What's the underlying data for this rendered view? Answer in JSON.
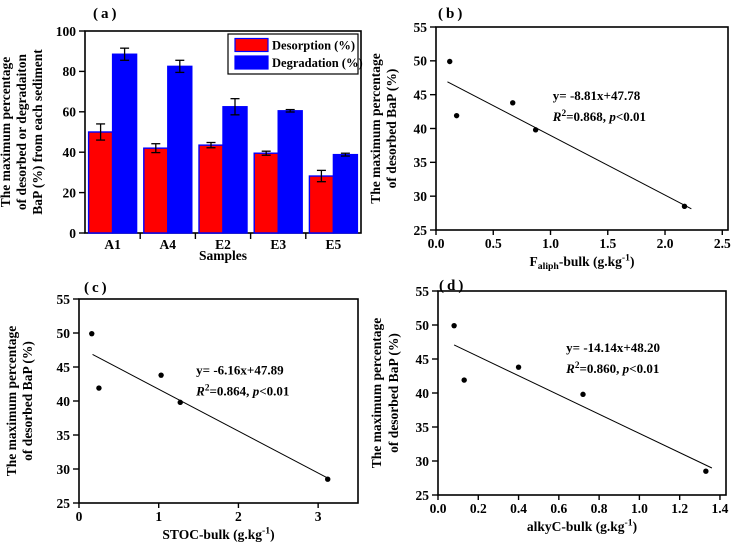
{
  "figure": {
    "background": "#ffffff",
    "text_color": "#000000",
    "accent_red": "#ff0000",
    "accent_blue": "#0000ff"
  },
  "chart_data": [
    {
      "id": "a",
      "type": "bar",
      "panel_label": "(a)",
      "xlabel": "Samples",
      "ylabel_lines": [
        "The maximum percentage",
        "of desorbed or degradaiton",
        "BaP (%) from each sediment"
      ],
      "categories": [
        "A1",
        "A4",
        "E2",
        "E3",
        "E5"
      ],
      "series": [
        {
          "name": "Desorption (%)",
          "color": "#ff0000",
          "values": [
            50,
            42,
            43.5,
            39.5,
            28.2
          ],
          "errors": [
            4,
            2.2,
            1.3,
            1,
            2.8
          ]
        },
        {
          "name": "Degradation (%)",
          "color": "#0000ff",
          "values": [
            88.5,
            82.5,
            62.5,
            60.5,
            38.8
          ],
          "errors": [
            3,
            3,
            4,
            0.6,
            0.7
          ]
        }
      ],
      "ylim": [
        0,
        100
      ],
      "yticks": [
        0,
        20,
        40,
        60,
        80,
        100
      ],
      "bar_edge_color": "#0000ff",
      "legend": {
        "position": "top-right",
        "entries": [
          "Desorption (%)",
          "Degradation (%)"
        ],
        "colors": [
          "#ff0000",
          "#0000ff"
        ]
      }
    },
    {
      "id": "b",
      "type": "scatter",
      "panel_label": "(b)",
      "xlabel_segments": [
        {
          "t": "F"
        },
        {
          "t": "aliph",
          "sub": true
        },
        {
          "t": "-bulk (g.kg"
        },
        {
          "t": "-1",
          "sup": true
        },
        {
          "t": ")"
        }
      ],
      "ylabel_lines": [
        "The maximum percentage",
        "of desorbed BaP (%)"
      ],
      "x": [
        0.12,
        0.18,
        0.67,
        0.87,
        2.17
      ],
      "y": [
        49.9,
        41.9,
        43.8,
        39.8,
        28.5
      ],
      "fit": {
        "slope": -8.81,
        "intercept": 47.78,
        "x_start": 0.1,
        "x_end": 2.23
      },
      "annot_line1": "y= -8.81x+47.78",
      "annot_line2_segments": [
        {
          "t": "R",
          "i": true
        },
        {
          "t": "2",
          "sup": true
        },
        {
          "t": "=0.868, "
        },
        {
          "t": "p",
          "i": true
        },
        {
          "t": "<0.01"
        }
      ],
      "xlim": [
        0,
        2.55
      ],
      "xticks": [
        0,
        0.5,
        1,
        1.5,
        2,
        2.5
      ],
      "xtick_labels": [
        "0.0",
        "0.5",
        "1.0",
        "1.5",
        "2.0",
        "2.5"
      ],
      "ylim": [
        25,
        55
      ],
      "yticks": [
        25,
        30,
        35,
        40,
        45,
        50,
        55
      ],
      "annot_frac": [
        0.4,
        0.36
      ],
      "point_color": "#000000"
    },
    {
      "id": "c",
      "type": "scatter",
      "panel_label": "(c)",
      "xlabel_segments": [
        {
          "t": "STOC-bulk (g.kg"
        },
        {
          "t": "-1",
          "sup": true
        },
        {
          "t": ")"
        }
      ],
      "ylabel_lines": [
        "The maximum percentage",
        "of desorbed BaP (%)"
      ],
      "x": [
        0.16,
        0.25,
        1.03,
        1.27,
        3.12
      ],
      "y": [
        49.9,
        41.9,
        43.8,
        39.8,
        28.5
      ],
      "fit": {
        "slope": -6.16,
        "intercept": 47.89,
        "x_start": 0.17,
        "x_end": 3.15
      },
      "annot_line1": "y= -6.16x+47.89",
      "annot_line2_segments": [
        {
          "t": "R",
          "i": true
        },
        {
          "t": "2",
          "sup": true
        },
        {
          "t": "=0.864, "
        },
        {
          "t": "p",
          "i": true
        },
        {
          "t": "<0.01"
        }
      ],
      "xlim": [
        0,
        3.5
      ],
      "xticks": [
        0,
        1,
        2,
        3
      ],
      "xtick_labels": [
        "0",
        "1",
        "2",
        "3"
      ],
      "ylim": [
        25,
        55
      ],
      "yticks": [
        25,
        30,
        35,
        40,
        45,
        50,
        55
      ],
      "annot_frac": [
        0.42,
        0.37
      ],
      "point_color": "#000000"
    },
    {
      "id": "d",
      "type": "scatter",
      "panel_label": "(d)",
      "xlabel_segments": [
        {
          "t": "alkyC-bulk (g.kg"
        },
        {
          "t": "-1",
          "sup": true
        },
        {
          "t": ")"
        }
      ],
      "ylabel_lines": [
        "The maximum percentage",
        "of desorbed BaP (%)"
      ],
      "x": [
        0.08,
        0.13,
        0.4,
        0.72,
        1.33
      ],
      "y": [
        49.9,
        41.9,
        43.8,
        39.8,
        28.5
      ],
      "fit": {
        "slope": -14.14,
        "intercept": 48.2,
        "x_start": 0.08,
        "x_end": 1.36
      },
      "annot_line1": "y= -14.14x+48.20",
      "annot_line2_segments": [
        {
          "t": "R",
          "i": true
        },
        {
          "t": "2",
          "sup": true
        },
        {
          "t": "=0.860, "
        },
        {
          "t": "p",
          "i": true
        },
        {
          "t": "<0.01"
        }
      ],
      "xlim": [
        0,
        1.43
      ],
      "xticks": [
        0,
        0.2,
        0.4,
        0.6,
        0.8,
        1.0,
        1.2,
        1.4
      ],
      "xtick_labels": [
        "0.0",
        "0.2",
        "0.4",
        "0.6",
        "0.8",
        "1.0",
        "1.2",
        "1.4"
      ],
      "ylim": [
        25,
        55
      ],
      "yticks": [
        25,
        30,
        35,
        40,
        45,
        50,
        55
      ],
      "annot_frac": [
        0.445,
        0.3
      ],
      "point_color": "#000000"
    }
  ]
}
